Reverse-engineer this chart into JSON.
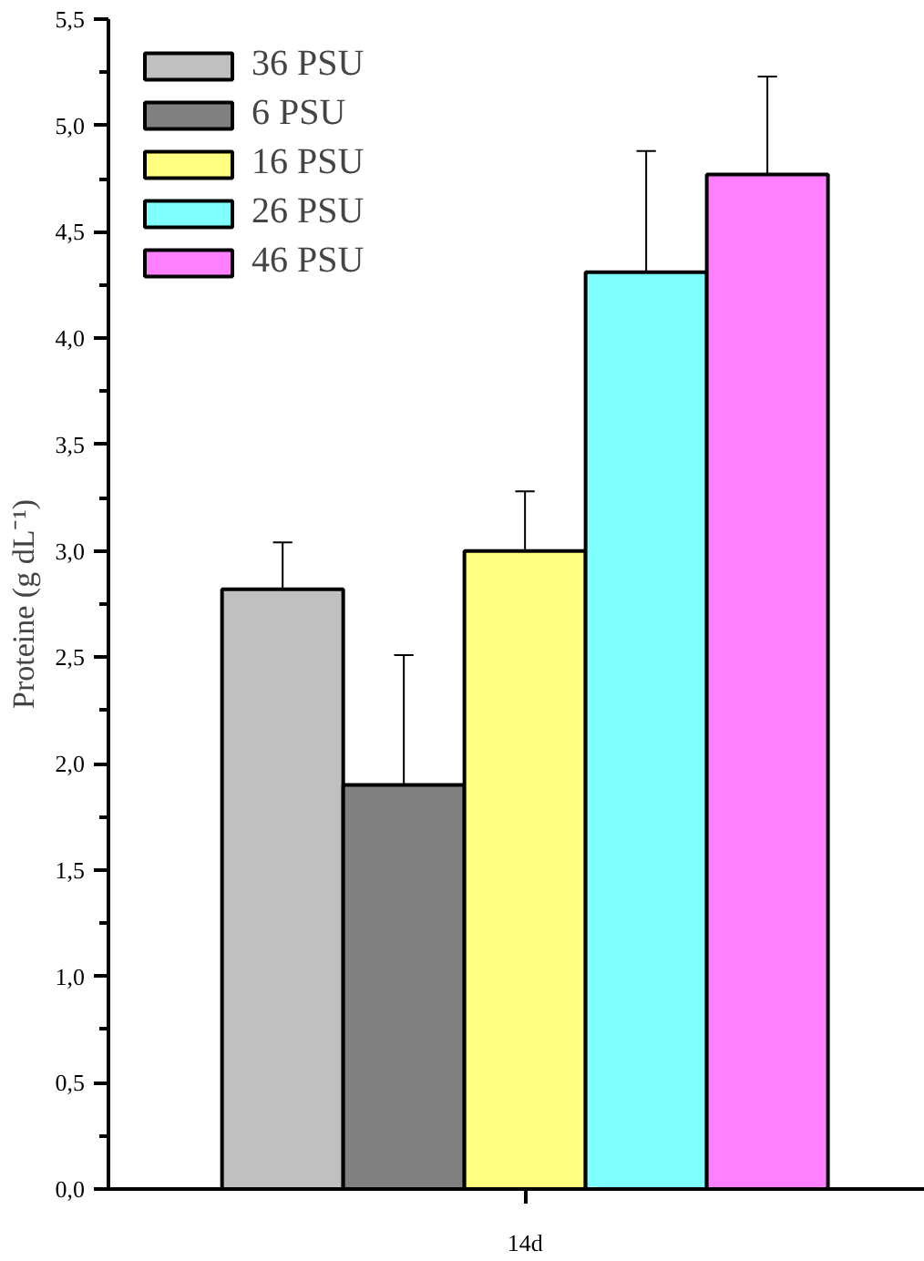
{
  "chart_data": {
    "type": "bar",
    "ylabel": "Proteine (g dL⁻¹)",
    "categories": [
      "14d"
    ],
    "series": [
      {
        "name": "36 PSU",
        "color": "#c0c0c0",
        "values": [
          2.82
        ],
        "errors": [
          [
            2.82,
            3.04
          ]
        ]
      },
      {
        "name": "6 PSU",
        "color": "#808080",
        "values": [
          1.9
        ],
        "errors": [
          [
            1.9,
            2.51
          ]
        ]
      },
      {
        "name": "16 PSU",
        "color": "#ffff80",
        "values": [
          3.0
        ],
        "errors": [
          [
            3.0,
            3.28
          ]
        ]
      },
      {
        "name": "26 PSU",
        "color": "#80ffff",
        "values": [
          4.31
        ],
        "errors": [
          [
            4.31,
            4.88
          ]
        ]
      },
      {
        "name": "46 PSU",
        "color": "#ff80ff",
        "values": [
          4.77
        ],
        "errors": [
          [
            4.77,
            5.23
          ]
        ]
      }
    ],
    "ylim": [
      0,
      5.5
    ],
    "yticks": [
      {
        "value": 0,
        "label": "0,0"
      },
      {
        "value": 0.5,
        "label": "0,5"
      },
      {
        "value": 1,
        "label": "1,0"
      },
      {
        "value": 1.5,
        "label": "1,5"
      },
      {
        "value": 2,
        "label": "2,0"
      },
      {
        "value": 2.5,
        "label": "2,5"
      },
      {
        "value": 3,
        "label": "3,0"
      },
      {
        "value": 3.5,
        "label": "3,5"
      },
      {
        "value": 4,
        "label": "4,0"
      },
      {
        "value": 4.5,
        "label": "4,5"
      },
      {
        "value": 5,
        "label": "5,0"
      },
      {
        "value": 5.5,
        "label": "5,5"
      }
    ],
    "grid": false,
    "legend": "top left"
  }
}
